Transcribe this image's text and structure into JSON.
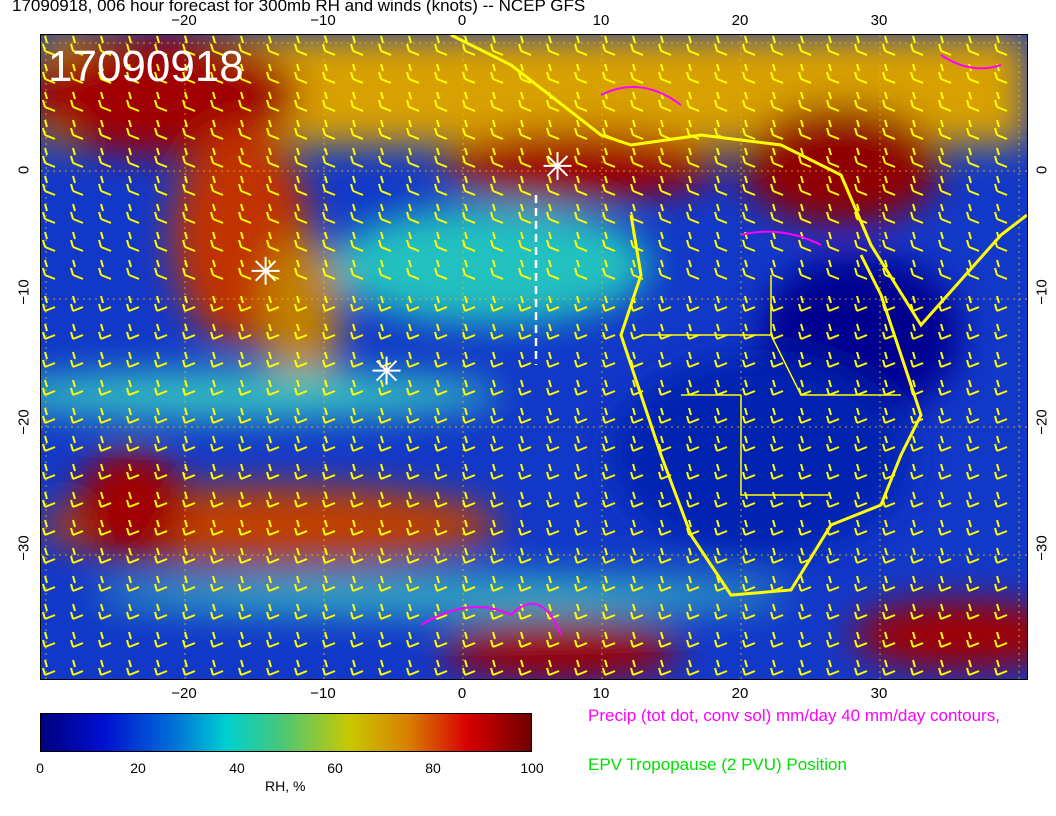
{
  "title": "17090918, 006 hour forecast for 300mb RH and winds (knots) -- NCEP GFS",
  "stamp": "17090918",
  "lon_ticks": [
    "−20",
    "−10",
    "0",
    "10",
    "20",
    "30"
  ],
  "lat_ticks": [
    "0",
    "−10",
    "−20",
    "−30"
  ],
  "colorbar": {
    "label": "RH, %",
    "ticks": [
      "0",
      "20",
      "40",
      "60",
      "80",
      "100"
    ],
    "colors": [
      "#00007f",
      "#0010d0",
      "#00d0d0",
      "#c8c800",
      "#d80000",
      "#700000"
    ]
  },
  "legend": {
    "precip": "Precip (tot dot, conv sol) mm/day 40 mm/day contours,",
    "epv": "EPV Tropopause (2 PVU) Position"
  },
  "colors": {
    "coastline": "#ffff00",
    "precip": "#ff00ff",
    "epv": "#00e000",
    "markers": "#ffffff"
  },
  "markers": [
    {
      "type": "asterisk",
      "lon": -14.2,
      "lat": -7.8
    },
    {
      "type": "asterisk",
      "lon": -5.5,
      "lat": -15.6
    },
    {
      "type": "asterisk",
      "lon": 6.8,
      "lat": 0.4
    }
  ]
}
